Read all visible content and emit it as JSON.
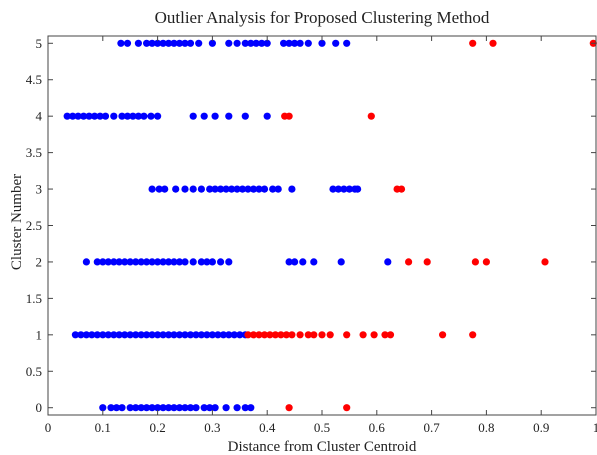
{
  "chart_data": {
    "type": "scatter",
    "title": "Outlier Analysis for Proposed Clustering Method",
    "xlabel": "Distance from Cluster Centroid",
    "ylabel": "Cluster Number",
    "xlim": [
      0,
      1
    ],
    "ylim": [
      -0.1,
      5.1
    ],
    "xticks": [
      0,
      0.1,
      0.2,
      0.3,
      0.4,
      0.5,
      0.6,
      0.7,
      0.8,
      0.9,
      1
    ],
    "yticks": [
      0,
      0.5,
      1,
      1.5,
      2,
      2.5,
      3,
      3.5,
      4,
      4.5,
      5
    ],
    "xtick_labels": [
      "0",
      "0.1",
      "0.2",
      "0.3",
      "0.4",
      "0.5",
      "0.6",
      "0.7",
      "0.8",
      "0.9",
      "1"
    ],
    "ytick_labels": [
      "0",
      "0.5",
      "1",
      "1.5",
      "2",
      "2.5",
      "3",
      "3.5",
      "4",
      "4.5",
      "5"
    ],
    "grid": false,
    "series": [
      {
        "color": "#0000ff",
        "points": [
          [
            0.133,
            5
          ],
          [
            0.145,
            5
          ],
          [
            0.165,
            5
          ],
          [
            0.18,
            5
          ],
          [
            0.19,
            5
          ],
          [
            0.2,
            5
          ],
          [
            0.21,
            5
          ],
          [
            0.22,
            5
          ],
          [
            0.23,
            5
          ],
          [
            0.24,
            5
          ],
          [
            0.25,
            5
          ],
          [
            0.26,
            5
          ],
          [
            0.275,
            5
          ],
          [
            0.3,
            5
          ],
          [
            0.33,
            5
          ],
          [
            0.345,
            5
          ],
          [
            0.36,
            5
          ],
          [
            0.37,
            5
          ],
          [
            0.38,
            5
          ],
          [
            0.39,
            5
          ],
          [
            0.4,
            5
          ],
          [
            0.43,
            5
          ],
          [
            0.44,
            5
          ],
          [
            0.45,
            5
          ],
          [
            0.46,
            5
          ],
          [
            0.475,
            5
          ],
          [
            0.5,
            5
          ],
          [
            0.525,
            5
          ],
          [
            0.545,
            5
          ],
          [
            0.035,
            4
          ],
          [
            0.045,
            4
          ],
          [
            0.055,
            4
          ],
          [
            0.065,
            4
          ],
          [
            0.075,
            4
          ],
          [
            0.085,
            4
          ],
          [
            0.095,
            4
          ],
          [
            0.105,
            4
          ],
          [
            0.12,
            4
          ],
          [
            0.135,
            4
          ],
          [
            0.145,
            4
          ],
          [
            0.155,
            4
          ],
          [
            0.165,
            4
          ],
          [
            0.175,
            4
          ],
          [
            0.188,
            4
          ],
          [
            0.2,
            4
          ],
          [
            0.265,
            4
          ],
          [
            0.285,
            4
          ],
          [
            0.305,
            4
          ],
          [
            0.33,
            4
          ],
          [
            0.36,
            4
          ],
          [
            0.4,
            4
          ],
          [
            0.19,
            3
          ],
          [
            0.203,
            3
          ],
          [
            0.213,
            3
          ],
          [
            0.233,
            3
          ],
          [
            0.25,
            3
          ],
          [
            0.265,
            3
          ],
          [
            0.28,
            3
          ],
          [
            0.295,
            3
          ],
          [
            0.305,
            3
          ],
          [
            0.315,
            3
          ],
          [
            0.325,
            3
          ],
          [
            0.335,
            3
          ],
          [
            0.345,
            3
          ],
          [
            0.355,
            3
          ],
          [
            0.365,
            3
          ],
          [
            0.375,
            3
          ],
          [
            0.385,
            3
          ],
          [
            0.395,
            3
          ],
          [
            0.41,
            3
          ],
          [
            0.42,
            3
          ],
          [
            0.445,
            3
          ],
          [
            0.52,
            3
          ],
          [
            0.53,
            3
          ],
          [
            0.54,
            3
          ],
          [
            0.55,
            3
          ],
          [
            0.56,
            3
          ],
          [
            0.565,
            3
          ],
          [
            0.07,
            2
          ],
          [
            0.09,
            2
          ],
          [
            0.1,
            2
          ],
          [
            0.11,
            2
          ],
          [
            0.12,
            2
          ],
          [
            0.13,
            2
          ],
          [
            0.14,
            2
          ],
          [
            0.15,
            2
          ],
          [
            0.16,
            2
          ],
          [
            0.17,
            2
          ],
          [
            0.18,
            2
          ],
          [
            0.19,
            2
          ],
          [
            0.2,
            2
          ],
          [
            0.21,
            2
          ],
          [
            0.22,
            2
          ],
          [
            0.23,
            2
          ],
          [
            0.24,
            2
          ],
          [
            0.25,
            2
          ],
          [
            0.265,
            2
          ],
          [
            0.28,
            2
          ],
          [
            0.29,
            2
          ],
          [
            0.3,
            2
          ],
          [
            0.315,
            2
          ],
          [
            0.33,
            2
          ],
          [
            0.44,
            2
          ],
          [
            0.45,
            2
          ],
          [
            0.465,
            2
          ],
          [
            0.485,
            2
          ],
          [
            0.535,
            2
          ],
          [
            0.62,
            2
          ],
          [
            0.05,
            1
          ],
          [
            0.06,
            1
          ],
          [
            0.07,
            1
          ],
          [
            0.08,
            1
          ],
          [
            0.09,
            1
          ],
          [
            0.1,
            1
          ],
          [
            0.11,
            1
          ],
          [
            0.12,
            1
          ],
          [
            0.13,
            1
          ],
          [
            0.14,
            1
          ],
          [
            0.15,
            1
          ],
          [
            0.16,
            1
          ],
          [
            0.17,
            1
          ],
          [
            0.18,
            1
          ],
          [
            0.19,
            1
          ],
          [
            0.2,
            1
          ],
          [
            0.21,
            1
          ],
          [
            0.22,
            1
          ],
          [
            0.23,
            1
          ],
          [
            0.24,
            1
          ],
          [
            0.25,
            1
          ],
          [
            0.26,
            1
          ],
          [
            0.27,
            1
          ],
          [
            0.28,
            1
          ],
          [
            0.29,
            1
          ],
          [
            0.3,
            1
          ],
          [
            0.31,
            1
          ],
          [
            0.32,
            1
          ],
          [
            0.33,
            1
          ],
          [
            0.34,
            1
          ],
          [
            0.35,
            1
          ],
          [
            0.36,
            1
          ],
          [
            0.1,
            0
          ],
          [
            0.115,
            0
          ],
          [
            0.125,
            0
          ],
          [
            0.135,
            0
          ],
          [
            0.15,
            0
          ],
          [
            0.16,
            0
          ],
          [
            0.17,
            0
          ],
          [
            0.18,
            0
          ],
          [
            0.19,
            0
          ],
          [
            0.2,
            0
          ],
          [
            0.21,
            0
          ],
          [
            0.22,
            0
          ],
          [
            0.23,
            0
          ],
          [
            0.24,
            0
          ],
          [
            0.25,
            0
          ],
          [
            0.26,
            0
          ],
          [
            0.27,
            0
          ],
          [
            0.285,
            0
          ],
          [
            0.295,
            0
          ],
          [
            0.305,
            0
          ],
          [
            0.325,
            0
          ],
          [
            0.345,
            0
          ],
          [
            0.36,
            0
          ],
          [
            0.37,
            0
          ]
        ]
      },
      {
        "color": "#ff0000",
        "points": [
          [
            0.775,
            5
          ],
          [
            0.812,
            5
          ],
          [
            0.995,
            5
          ],
          [
            0.432,
            4
          ],
          [
            0.44,
            4
          ],
          [
            0.59,
            4
          ],
          [
            0.637,
            3
          ],
          [
            0.645,
            3
          ],
          [
            0.658,
            2
          ],
          [
            0.692,
            2
          ],
          [
            0.78,
            2
          ],
          [
            0.8,
            2
          ],
          [
            0.907,
            2
          ],
          [
            0.365,
            1
          ],
          [
            0.375,
            1
          ],
          [
            0.385,
            1
          ],
          [
            0.395,
            1
          ],
          [
            0.405,
            1
          ],
          [
            0.415,
            1
          ],
          [
            0.425,
            1
          ],
          [
            0.435,
            1
          ],
          [
            0.445,
            1
          ],
          [
            0.46,
            1
          ],
          [
            0.475,
            1
          ],
          [
            0.485,
            1
          ],
          [
            0.5,
            1
          ],
          [
            0.515,
            1
          ],
          [
            0.545,
            1
          ],
          [
            0.575,
            1
          ],
          [
            0.595,
            1
          ],
          [
            0.615,
            1
          ],
          [
            0.625,
            1
          ],
          [
            0.72,
            1
          ],
          [
            0.775,
            1
          ],
          [
            0.44,
            0
          ],
          [
            0.545,
            0
          ]
        ]
      }
    ]
  }
}
